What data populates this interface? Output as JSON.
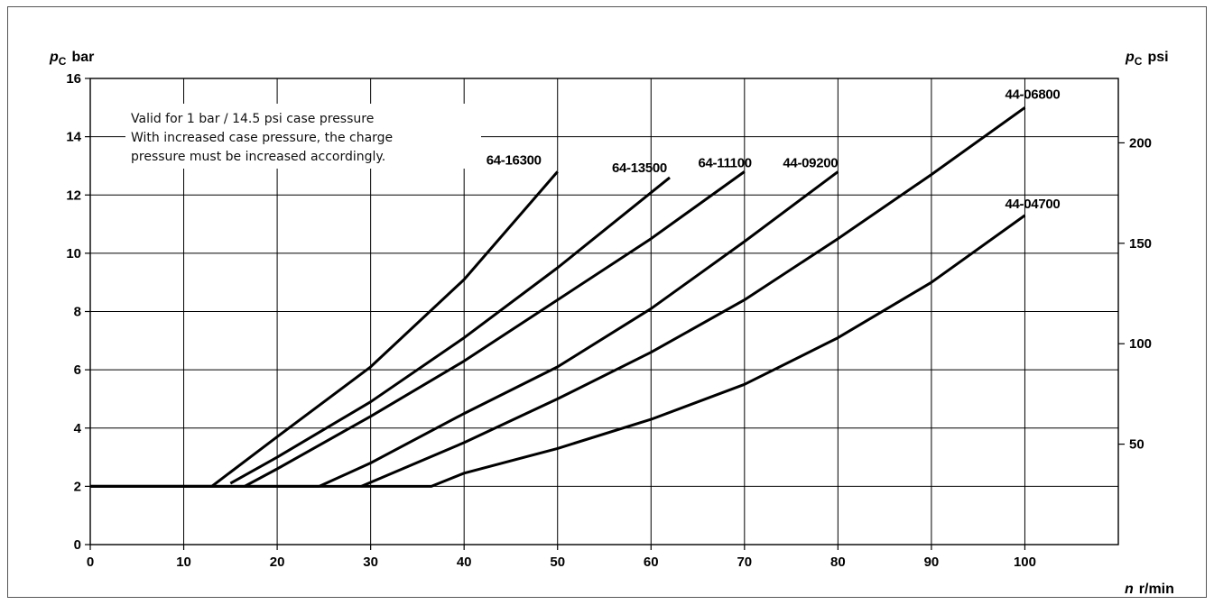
{
  "chart_data": {
    "type": "line",
    "x_axis": {
      "symbol": "n",
      "unit": "r/min",
      "range": [
        0,
        110
      ],
      "ticks": [
        0,
        10,
        20,
        30,
        40,
        50,
        60,
        70,
        80,
        90,
        100
      ]
    },
    "y_axis_left": {
      "symbol": "p",
      "subscript": "C",
      "unit": "bar",
      "range": [
        0,
        16
      ],
      "ticks": [
        0,
        2,
        4,
        6,
        8,
        10,
        12,
        14,
        16
      ]
    },
    "y_axis_right": {
      "symbol": "p",
      "subscript": "C",
      "unit": "psi",
      "bar_per_psi": 0.0689476,
      "ticks": [
        50,
        100,
        150,
        200
      ]
    },
    "grid": true,
    "note": [
      "Valid for 1 bar / 14.5 psi case pressure",
      "With increased case pressure, the charge",
      "pressure must be increased accordingly."
    ],
    "series": [
      {
        "name": "64-16300",
        "points": [
          [
            0,
            2
          ],
          [
            13,
            2
          ],
          [
            20,
            3.7
          ],
          [
            30,
            6.1
          ],
          [
            40,
            9.1
          ],
          [
            50,
            12.8
          ]
        ]
      },
      {
        "name": "64-13500",
        "points": [
          [
            15,
            2.1
          ],
          [
            20,
            3.0
          ],
          [
            30,
            4.9
          ],
          [
            40,
            7.1
          ],
          [
            50,
            9.5
          ],
          [
            62,
            12.6
          ]
        ]
      },
      {
        "name": "64-11100",
        "points": [
          [
            16.5,
            2
          ],
          [
            20,
            2.6
          ],
          [
            30,
            4.4
          ],
          [
            40,
            6.3
          ],
          [
            50,
            8.4
          ],
          [
            60,
            10.5
          ],
          [
            70,
            12.8
          ]
        ]
      },
      {
        "name": "44-09200",
        "points": [
          [
            0,
            2
          ],
          [
            24.5,
            2
          ],
          [
            30,
            2.8
          ],
          [
            40,
            4.5
          ],
          [
            50,
            6.1
          ],
          [
            60,
            8.1
          ],
          [
            70,
            10.4
          ],
          [
            80,
            12.8
          ]
        ]
      },
      {
        "name": "44-06800",
        "points": [
          [
            29,
            2
          ],
          [
            40,
            3.5
          ],
          [
            50,
            5.0
          ],
          [
            60,
            6.6
          ],
          [
            70,
            8.4
          ],
          [
            80,
            10.5
          ],
          [
            90,
            12.7
          ],
          [
            100,
            15.0
          ]
        ]
      },
      {
        "name": "44-04700",
        "points": [
          [
            0,
            2
          ],
          [
            36.5,
            2
          ],
          [
            40,
            2.45
          ],
          [
            50,
            3.3
          ],
          [
            60,
            4.3
          ],
          [
            70,
            5.5
          ],
          [
            80,
            7.1
          ],
          [
            90,
            9.0
          ],
          [
            100,
            11.3
          ]
        ]
      }
    ]
  }
}
